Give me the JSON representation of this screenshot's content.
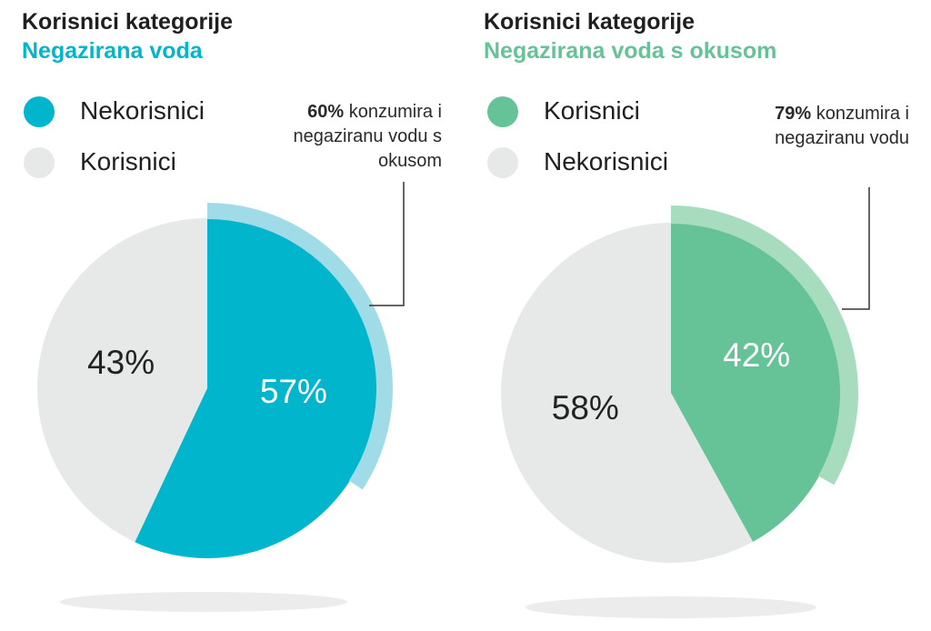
{
  "colors": {
    "teal": "#00b5cc",
    "teal_light": "#9fdce8",
    "green": "#66c397",
    "green_light": "#a7dcbf",
    "grey": "#e7e9e8",
    "shadow": "#ececec"
  },
  "chart_data": [
    {
      "type": "pie",
      "title": "Korisnici kategorije",
      "subtitle": "Negazirana voda",
      "legend": [
        {
          "label": "Nekorisnici",
          "color": "#00b5cc"
        },
        {
          "label": "Korisnici",
          "color": "#e7e9e8"
        }
      ],
      "slices": [
        {
          "label": "Nekorisnici",
          "value": 57,
          "display": "57%",
          "color": "#00b5cc"
        },
        {
          "label": "Korisnici",
          "value": 43,
          "display": "43%",
          "color": "#e7e9e8"
        }
      ],
      "highlight": {
        "value": 60,
        "bold": "60%",
        "text": "konzumira i negaziranu vodu s okusom"
      }
    },
    {
      "type": "pie",
      "title": "Korisnici kategorije",
      "subtitle": "Negazirana voda s okusom",
      "legend": [
        {
          "label": "Korisnici",
          "color": "#66c397"
        },
        {
          "label": "Nekorisnici",
          "color": "#e7e9e8"
        }
      ],
      "slices": [
        {
          "label": "Korisnici",
          "value": 42,
          "display": "42%",
          "color": "#66c397"
        },
        {
          "label": "Nekorisnici",
          "value": 58,
          "display": "58%",
          "color": "#e7e9e8"
        }
      ],
      "highlight": {
        "value": 79,
        "bold": "79%",
        "text": "konzumira i negaziranu vodu"
      }
    }
  ]
}
